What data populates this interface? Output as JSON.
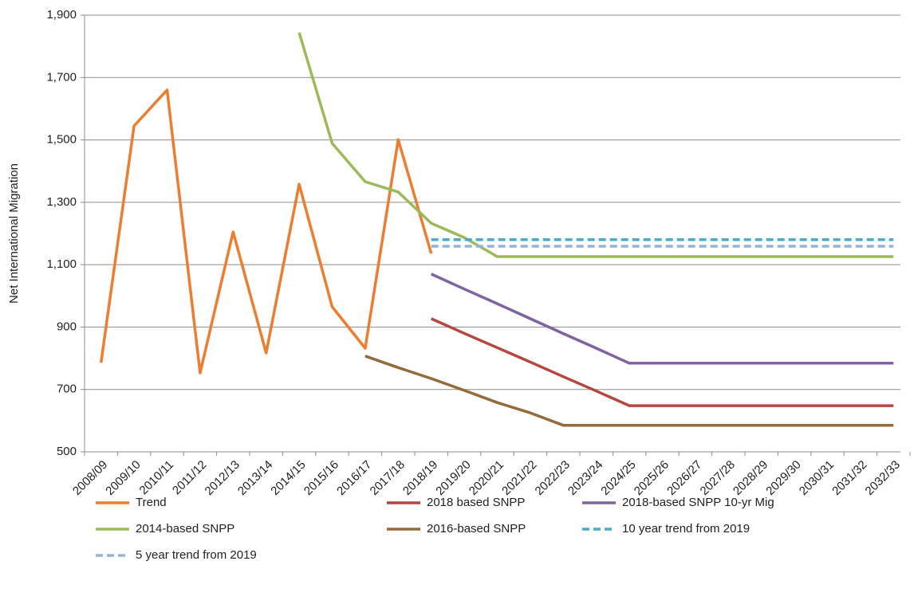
{
  "chart_data": {
    "type": "line",
    "y_label": "Net International Migration",
    "categories": [
      "2008/09",
      "2009/10",
      "2010/11",
      "2011/12",
      "2012/13",
      "2013/14",
      "2014/15",
      "2015/16",
      "2016/17",
      "2017/18",
      "2018/19",
      "2019/20",
      "2020/21",
      "2021/22",
      "2022/23",
      "2023/24",
      "2024/25",
      "2025/26",
      "2026/27",
      "2027/28",
      "2028/29",
      "2029/30",
      "2030/31",
      "2031/32",
      "2032/33"
    ],
    "ylim": [
      500,
      1900
    ],
    "yticks": [
      500,
      700,
      900,
      {
        "value": 1100,
        "label": "1,100"
      },
      {
        "value": 1300,
        "label": "1,300"
      },
      {
        "value": 1500,
        "label": "1,500"
      },
      {
        "value": 1700,
        "label": "1,700"
      },
      {
        "value": 1900,
        "label": "1,900"
      }
    ],
    "grid": true,
    "legend": "bottom",
    "series": [
      {
        "name": "Trend",
        "color": "#ED7D31",
        "dashed": false,
        "values": [
          786,
          1545,
          1660,
          753,
          1205,
          817,
          1358,
          965,
          832,
          1501,
          1136,
          null,
          null,
          null,
          null,
          null,
          null,
          null,
          null,
          null,
          null,
          null,
          null,
          null,
          null
        ]
      },
      {
        "name": "2018 based SNPP",
        "color": "#B5473E",
        "dashed": false,
        "values": [
          null,
          null,
          null,
          null,
          null,
          null,
          null,
          null,
          null,
          null,
          927,
          880,
          834,
          788,
          741,
          695,
          648,
          648,
          648,
          648,
          648,
          648,
          648,
          648,
          648
        ]
      },
      {
        "name": "2018-based SNPP 10-yr Mig",
        "color": "#8064A2",
        "dashed": false,
        "values": [
          null,
          null,
          null,
          null,
          null,
          null,
          null,
          null,
          null,
          null,
          1070,
          1022,
          975,
          927,
          879,
          832,
          784,
          784,
          784,
          784,
          784,
          784,
          784,
          784,
          784
        ]
      },
      {
        "name": "2014-based SNPP",
        "color": "#9BBB59",
        "dashed": false,
        "values": [
          null,
          null,
          null,
          null,
          null,
          null,
          1844,
          1489,
          1366,
          1333,
          1233,
          1187,
          1126,
          1126,
          1126,
          1126,
          1126,
          1126,
          1126,
          1126,
          1126,
          1126,
          1126,
          1126,
          1126
        ]
      },
      {
        "name": "2016-based SNPP",
        "color": "#946B3B",
        "dashed": false,
        "values": [
          null,
          null,
          null,
          null,
          null,
          null,
          null,
          null,
          807,
          770,
          735,
          697,
          658,
          625,
          585,
          585,
          585,
          585,
          585,
          585,
          585,
          585,
          585,
          585,
          585
        ]
      },
      {
        "name": "10 year trend from 2019",
        "color": "#4BACC6",
        "dashed": true,
        "values": [
          null,
          null,
          null,
          null,
          null,
          null,
          null,
          null,
          null,
          null,
          1180,
          1180,
          1180,
          1180,
          1180,
          1180,
          1180,
          1180,
          1180,
          1180,
          1180,
          1180,
          1180,
          1180,
          1180
        ]
      },
      {
        "name": "5 year trend from 2019",
        "color": "#95B3D7",
        "dashed": true,
        "values": [
          null,
          null,
          null,
          null,
          null,
          null,
          null,
          null,
          null,
          null,
          1159,
          1159,
          1159,
          1159,
          1159,
          1159,
          1159,
          1159,
          1159,
          1159,
          1159,
          1159,
          1159,
          1159,
          1159
        ]
      }
    ]
  }
}
